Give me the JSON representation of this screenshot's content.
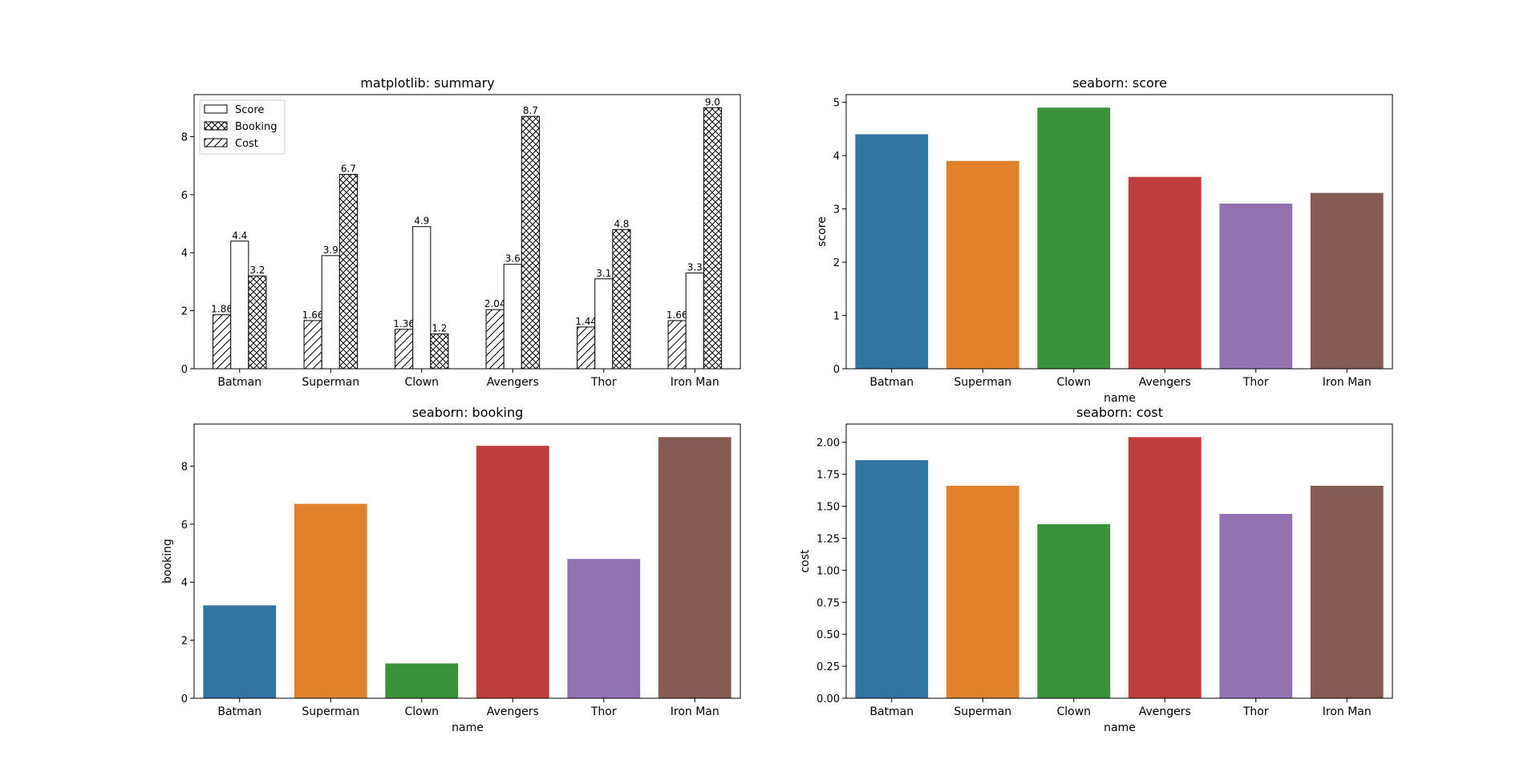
{
  "colors": {
    "palette": [
      "#3274a1",
      "#e1812c",
      "#3a923a",
      "#c03d3e",
      "#9372b2",
      "#845b53"
    ],
    "hatch_fill": "#ffffff",
    "edge": "#000000"
  },
  "chart_data": [
    {
      "type": "bar",
      "title": "matplotlib: summary",
      "xlabel": "",
      "ylabel": "",
      "categories": [
        "Batman",
        "Superman",
        "Clown",
        "Avengers",
        "Thor",
        "Iron Man"
      ],
      "series": [
        {
          "name": "Cost",
          "hatch": "diagonal",
          "values": [
            1.86,
            1.66,
            1.36,
            2.04,
            1.44,
            1.66
          ],
          "labels": [
            "1.86",
            "1.66",
            "1.36",
            "2.04",
            "1.44",
            "1.66"
          ]
        },
        {
          "name": "Score",
          "hatch": "none",
          "values": [
            4.4,
            3.9,
            4.9,
            3.6,
            3.1,
            3.3
          ],
          "labels": [
            "4.4",
            "3.9",
            "4.9",
            "3.6",
            "3.1",
            "3.3"
          ]
        },
        {
          "name": "Booking",
          "hatch": "crosshatch",
          "values": [
            3.2,
            6.7,
            1.2,
            8.7,
            4.8,
            9.0
          ],
          "labels": [
            "3.2",
            "6.7",
            "1.2",
            "8.7",
            "4.8",
            "9.0"
          ]
        }
      ],
      "legend": {
        "placement": "top-left",
        "entries": [
          "Score",
          "Booking",
          "Cost"
        ]
      },
      "ylim": [
        0,
        9.45
      ],
      "yticks": [
        "0",
        "2",
        "4",
        "6",
        "8"
      ],
      "grid": false
    },
    {
      "type": "bar",
      "title": "seaborn: score",
      "xlabel": "name",
      "ylabel": "score",
      "categories": [
        "Batman",
        "Superman",
        "Clown",
        "Avengers",
        "Thor",
        "Iron Man"
      ],
      "values": [
        4.4,
        3.9,
        4.9,
        3.6,
        3.1,
        3.3
      ],
      "ylim": [
        0,
        5.145
      ],
      "yticks": [
        "0",
        "1",
        "2",
        "3",
        "4",
        "5"
      ],
      "grid": false
    },
    {
      "type": "bar",
      "title": "seaborn: booking",
      "xlabel": "name",
      "ylabel": "booking",
      "categories": [
        "Batman",
        "Superman",
        "Clown",
        "Avengers",
        "Thor",
        "Iron Man"
      ],
      "values": [
        3.2,
        6.7,
        1.2,
        8.7,
        4.8,
        9.0
      ],
      "ylim": [
        0,
        9.45
      ],
      "yticks": [
        "0",
        "2",
        "4",
        "6",
        "8"
      ],
      "grid": false
    },
    {
      "type": "bar",
      "title": "seaborn: cost",
      "xlabel": "name",
      "ylabel": "cost",
      "categories": [
        "Batman",
        "Superman",
        "Clown",
        "Avengers",
        "Thor",
        "Iron Man"
      ],
      "values": [
        1.86,
        1.66,
        1.36,
        2.04,
        1.44,
        1.66
      ],
      "ylim": [
        0,
        2.142
      ],
      "yticks": [
        "0.00",
        "0.25",
        "0.50",
        "0.75",
        "1.00",
        "1.25",
        "1.50",
        "1.75",
        "2.00"
      ],
      "grid": false
    }
  ]
}
